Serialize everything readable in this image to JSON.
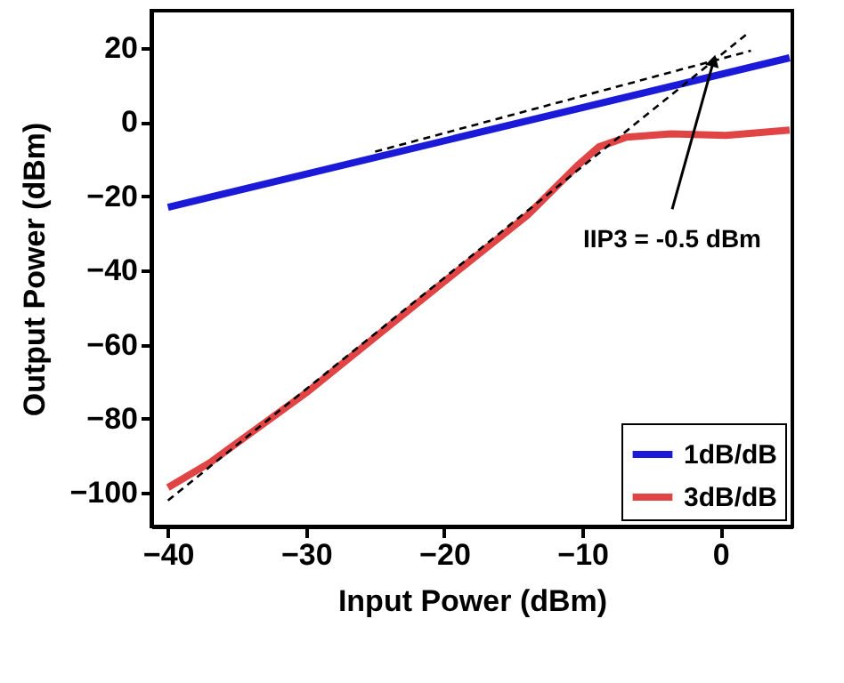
{
  "chart_data": {
    "type": "line",
    "xlabel": "Input Power (dBm)",
    "ylabel": "Output Power (dBm)",
    "xlim": [
      -41.2,
      5.2
    ],
    "ylim": [
      -109,
      30
    ],
    "xticks": [
      -40,
      -30,
      -20,
      -10,
      0
    ],
    "yticks": [
      -100,
      -80,
      -60,
      -40,
      -20,
      0,
      20
    ],
    "grid": false,
    "legend": "bottom right",
    "marker": "none",
    "line_style": "solid",
    "series": [
      {
        "name": "1dB/dB",
        "color": "#1a1ad8",
        "x": [
          -40,
          5
        ],
        "values": [
          -23,
          17.3
        ]
      },
      {
        "name": "3dB/dB",
        "color": "#e04444",
        "x": [
          -40,
          -37,
          -30,
          -25,
          -20,
          -14,
          -10.4,
          -8.8,
          -6.8,
          -3.6,
          0.4,
          5
        ],
        "values": [
          -98.5,
          -91.9,
          -73,
          -58,
          -43,
          -25.2,
          -11.9,
          -6.7,
          -4.1,
          -3.2,
          -3.6,
          -2.2
        ]
      },
      {
        "type": "line",
        "color": "#000000",
        "line_style": "dashed",
        "x": [
          -25,
          2.2
        ],
        "values": [
          -8,
          19.2
        ]
      },
      {
        "type": "line",
        "color": "#000000",
        "line_style": "dashed",
        "x": [
          -40,
          2.1
        ],
        "values": [
          -102,
          24.3
        ]
      }
    ],
    "annotations": [
      {
        "text": "IIP3 = -0.5 dBm",
        "x": -0.5,
        "y": 16.5
      }
    ]
  }
}
